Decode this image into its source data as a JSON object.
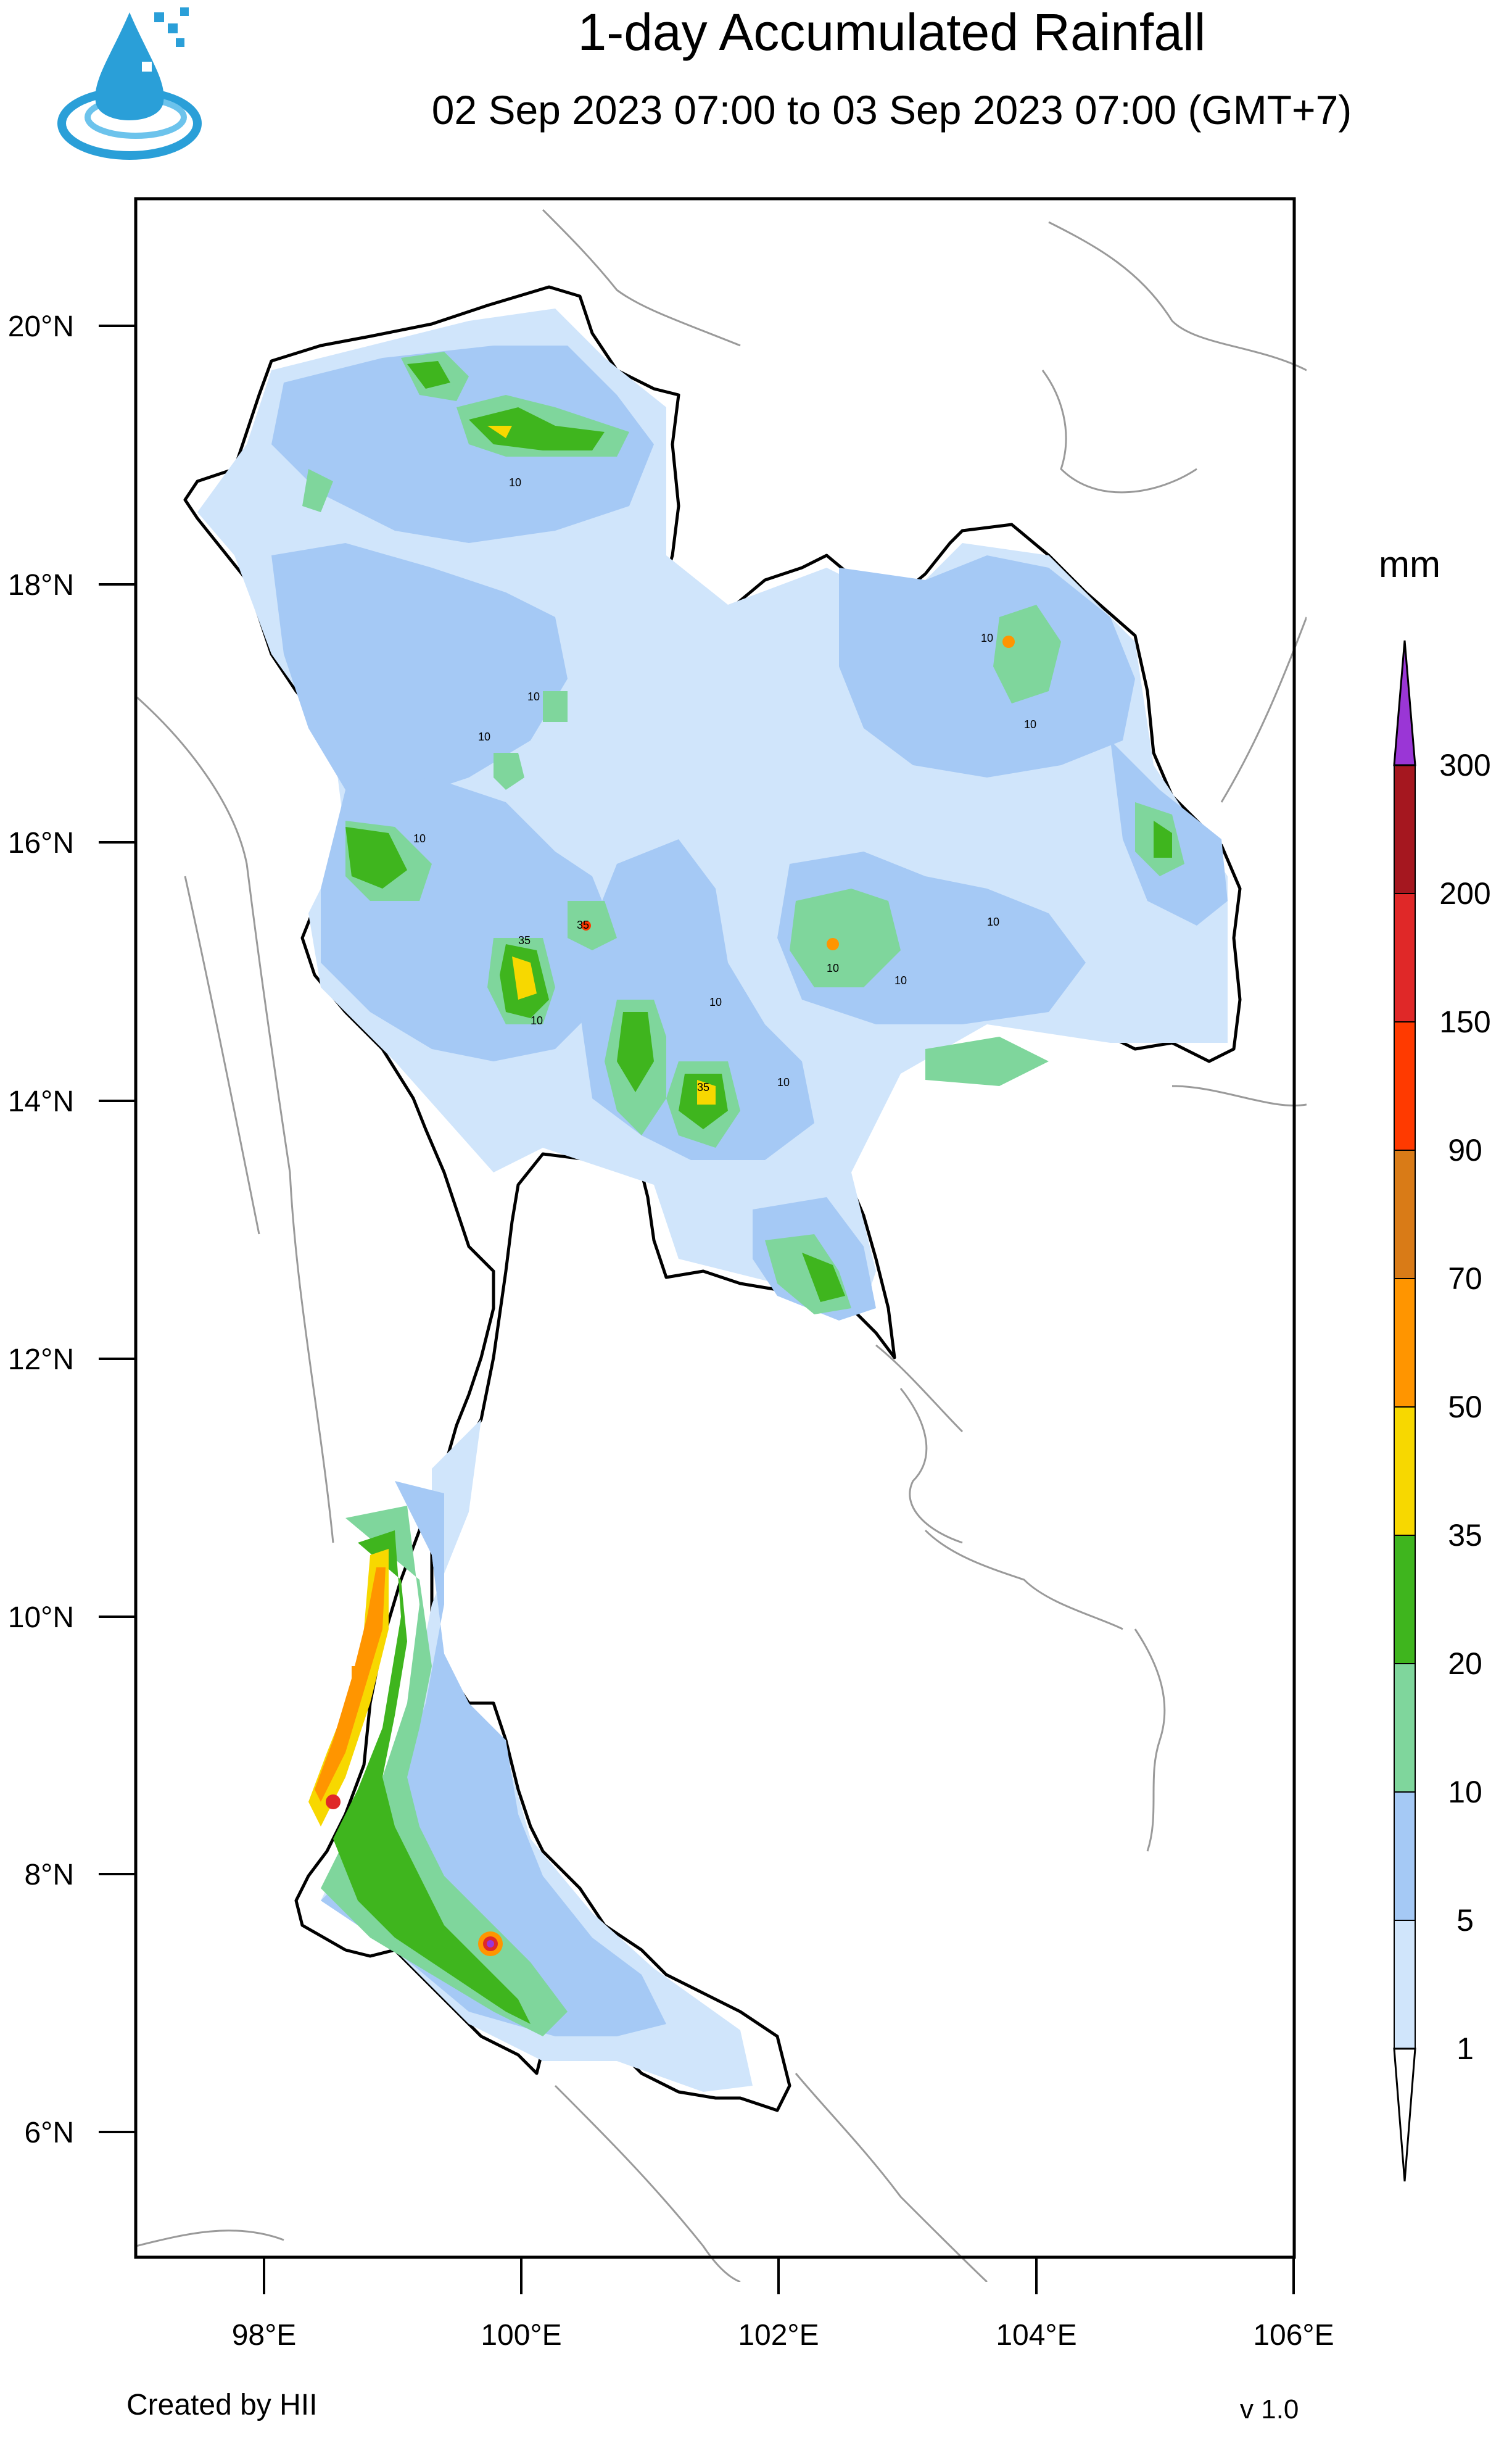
{
  "header": {
    "title": "1-day Accumulated Rainfall",
    "subtitle": "02 Sep 2023 07:00 to 03 Sep 2023 07:00 (GMT+7)"
  },
  "logo": {
    "icon": "water-drop-icon",
    "color": "#2a9fd8"
  },
  "map": {
    "lat_ticks": [
      "20°N",
      "18°N",
      "16°N",
      "14°N",
      "12°N",
      "10°N",
      "8°N",
      "6°N"
    ],
    "lon_ticks": [
      "98°E",
      "100°E",
      "102°E",
      "104°E",
      "106°E"
    ],
    "contour_labels": [
      "10",
      "10",
      "10",
      "10",
      "10",
      "10",
      "10",
      "10",
      "10",
      "10",
      "10",
      "10",
      "35",
      "35",
      "35"
    ]
  },
  "legend": {
    "unit": "mm",
    "levels": [
      "1",
      "5",
      "10",
      "20",
      "35",
      "50",
      "70",
      "90",
      "150",
      "200",
      "300"
    ],
    "colors": [
      "#d0e5fb",
      "#a5c9f5",
      "#7fd69c",
      "#3fb51e",
      "#f7d800",
      "#ff9500",
      "#d97b17",
      "#ff3a00",
      "#e02828",
      "#a5171f",
      "#9a36d6"
    ],
    "below_color": "#ffffff"
  },
  "footer": {
    "credit": "Created by HII",
    "version": "v 1.0"
  }
}
